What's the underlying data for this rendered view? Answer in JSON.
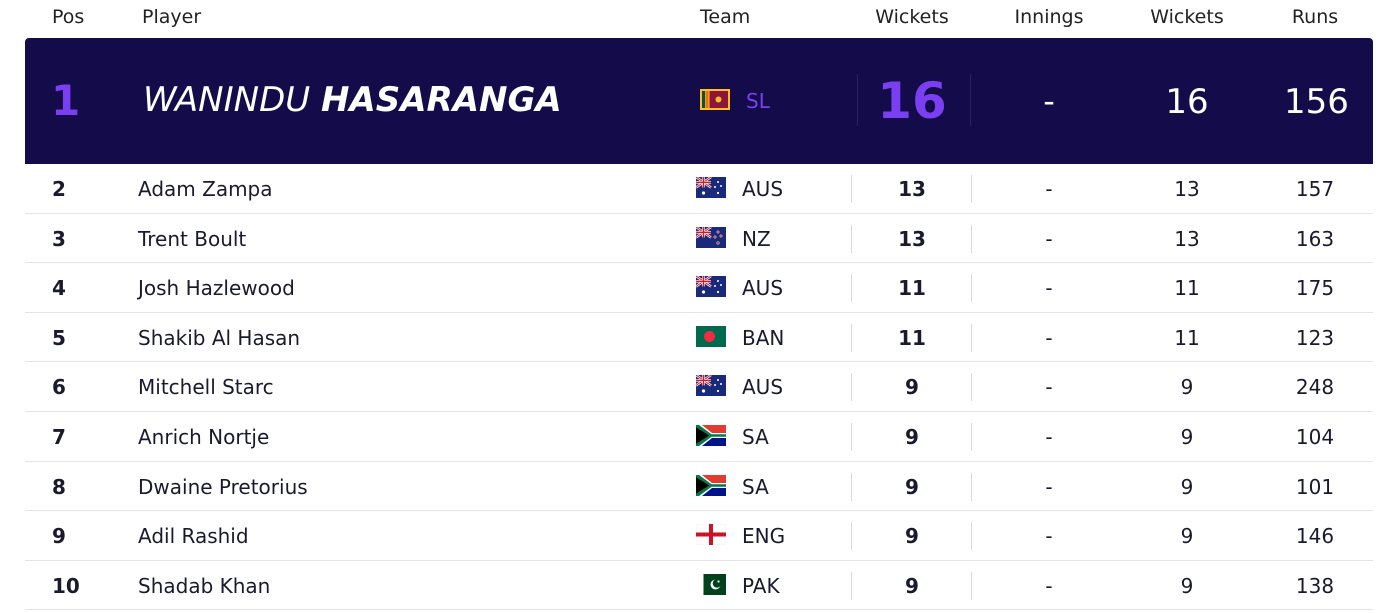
{
  "header": {
    "pos": "Pos",
    "player": "Player",
    "team": "Team",
    "wickets": "Wickets",
    "innings": "Innings",
    "wickets2": "Wickets",
    "runs": "Runs"
  },
  "leader": {
    "pos": "1",
    "first_name": "WANINDU",
    "last_name": "HASARANGA",
    "flag": "sri-lanka-flag",
    "team": "SL",
    "wickets": "16",
    "innings": "-",
    "wickets2": "16",
    "runs": "156"
  },
  "rows": [
    {
      "pos": "2",
      "name": "Adam Zampa",
      "flag": "australia-flag",
      "team": "AUS",
      "wickets": "13",
      "innings": "-",
      "wickets2": "13",
      "runs": "157"
    },
    {
      "pos": "3",
      "name": "Trent Boult",
      "flag": "new-zealand-flag",
      "team": "NZ",
      "wickets": "13",
      "innings": "-",
      "wickets2": "13",
      "runs": "163"
    },
    {
      "pos": "4",
      "name": "Josh Hazlewood",
      "flag": "australia-flag",
      "team": "AUS",
      "wickets": "11",
      "innings": "-",
      "wickets2": "11",
      "runs": "175"
    },
    {
      "pos": "5",
      "name": "Shakib Al Hasan",
      "flag": "bangladesh-flag",
      "team": "BAN",
      "wickets": "11",
      "innings": "-",
      "wickets2": "11",
      "runs": "123"
    },
    {
      "pos": "6",
      "name": "Mitchell Starc",
      "flag": "australia-flag",
      "team": "AUS",
      "wickets": "9",
      "innings": "-",
      "wickets2": "9",
      "runs": "248"
    },
    {
      "pos": "7",
      "name": "Anrich Nortje",
      "flag": "south-africa-flag",
      "team": "SA",
      "wickets": "9",
      "innings": "-",
      "wickets2": "9",
      "runs": "104"
    },
    {
      "pos": "8",
      "name": "Dwaine Pretorius",
      "flag": "south-africa-flag",
      "team": "SA",
      "wickets": "9",
      "innings": "-",
      "wickets2": "9",
      "runs": "101"
    },
    {
      "pos": "9",
      "name": "Adil Rashid",
      "flag": "england-flag",
      "team": "ENG",
      "wickets": "9",
      "innings": "-",
      "wickets2": "9",
      "runs": "146"
    },
    {
      "pos": "10",
      "name": "Shadab Khan",
      "flag": "pakistan-flag",
      "team": "PAK",
      "wickets": "9",
      "innings": "-",
      "wickets2": "9",
      "runs": "138"
    }
  ],
  "colors": {
    "leader_bg": "#140b4b",
    "accent": "#7b3ff2"
  }
}
